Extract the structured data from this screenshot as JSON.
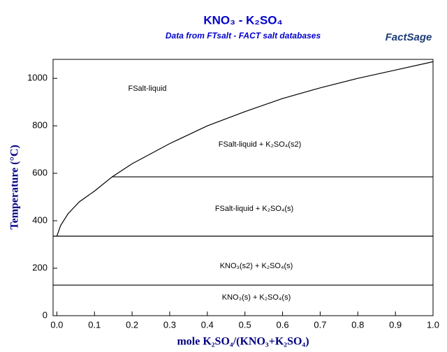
{
  "chart_data": {
    "type": "line",
    "title": "KNO₃ - K₂SO₄",
    "subtitle": "Data from FTsalt - FACT salt databases",
    "logo": "FactSage",
    "x_label": "mole K₂SO₄/(KNO₃+K₂SO₄)",
    "y_label": "Temperature (°C)",
    "xlim": [
      -0.01,
      1.0
    ],
    "ylim": [
      0,
      1080
    ],
    "xticks": [
      {
        "value": 0,
        "label": "0.0"
      },
      0.1,
      0.2,
      0.3,
      0.4,
      0.5,
      0.6,
      0.7,
      0.8,
      0.9,
      {
        "value": 1,
        "label": "1.0"
      }
    ],
    "yticks": [
      0,
      200,
      400,
      600,
      800,
      1000
    ],
    "series": [
      {
        "color": "#000000",
        "x": [
          0.0,
          0.01,
          0.03,
          0.06,
          0.1,
          0.147,
          0.2,
          0.3,
          0.4,
          0.5,
          0.6,
          0.7,
          0.8,
          0.9,
          1.0
        ],
        "values": [
          335,
          380,
          430,
          480,
          525,
          585,
          640,
          725,
          800,
          860,
          915,
          960,
          1000,
          1035,
          1070
        ]
      },
      {
        "color": "#000000",
        "x": [
          0.147,
          1.0
        ],
        "values": [
          585,
          585
        ]
      },
      {
        "color": "#000000",
        "x": [
          -0.01,
          1.0
        ],
        "values": [
          335,
          335
        ]
      },
      {
        "color": "#000000",
        "x": [
          -0.01,
          1.0
        ],
        "values": [
          129,
          129
        ]
      }
    ],
    "annotations": [
      "FSalt-liquid",
      "FSalt-liquid + K₂SO₄(s2)",
      "FSalt-liquid + K₂SO₄(s)",
      "KNO₃(s2) + K₂SO₄(s)",
      "KNO₃(s) + K₂SO₄(s)"
    ]
  }
}
